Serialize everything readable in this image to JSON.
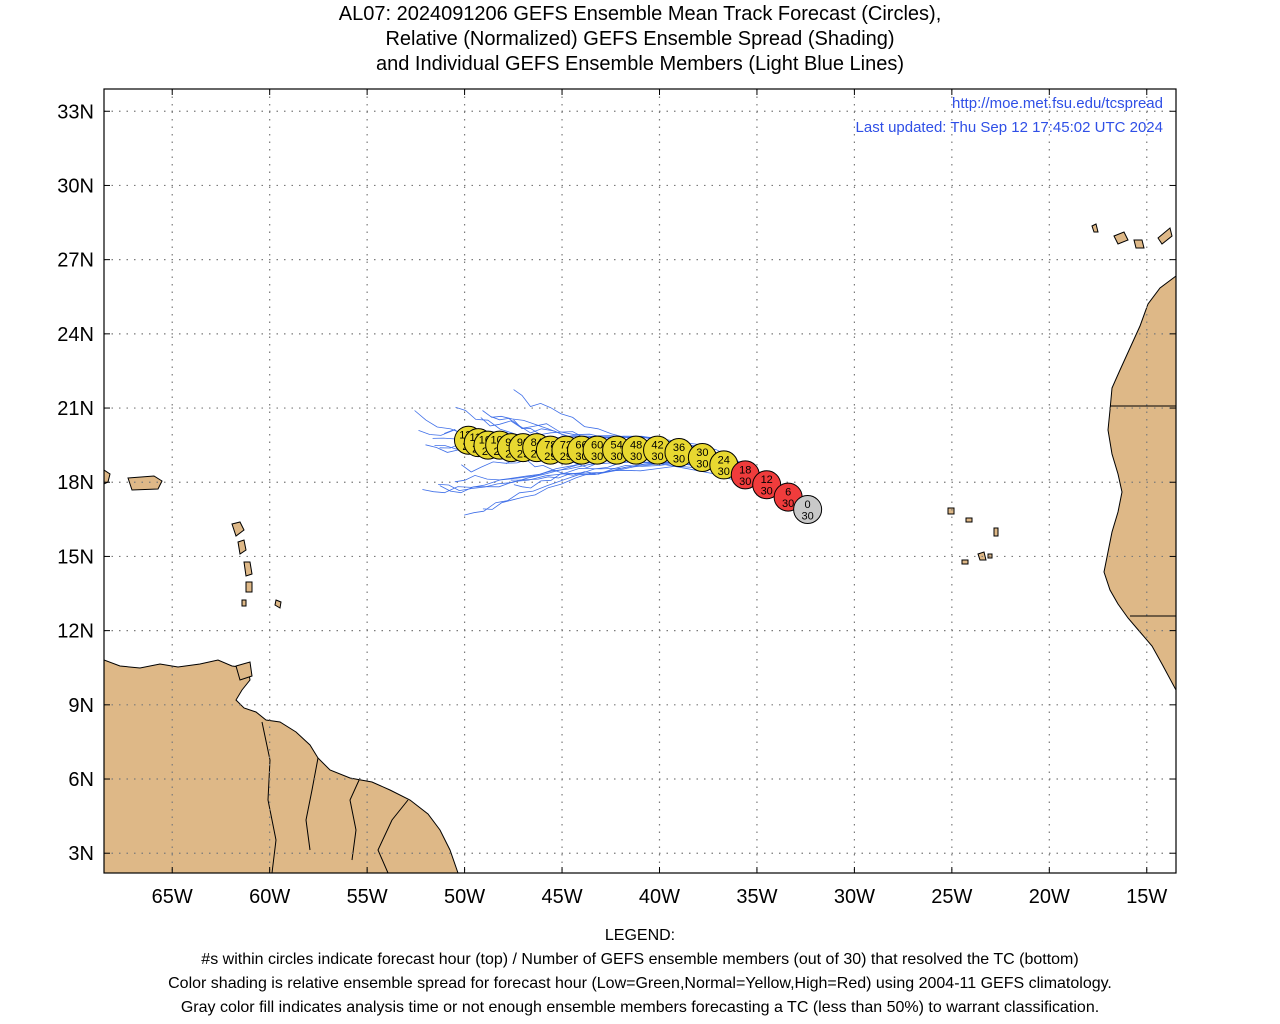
{
  "title": {
    "line1": "AL07: 2024091206 GEFS Ensemble Mean Track Forecast (Circles),",
    "line2": "Relative (Normalized) GEFS Ensemble Spread (Shading)",
    "line3": "and Individual GEFS Ensemble Members (Light Blue Lines)"
  },
  "credits": {
    "url": "http://moe.met.fsu.edu/tcspread",
    "updated": "Last updated: Thu Sep 12 17:45:02 UTC 2024"
  },
  "legend": {
    "heading": "LEGEND:",
    "line1": "#s within circles indicate forecast hour (top) / Number of GEFS ensemble members (out of 30) that resolved the TC (bottom)",
    "line2": "Color shading is relative ensemble spread for forecast hour (Low=Green,Normal=Yellow,High=Red) using 2004-11 GEFS climatology.",
    "line3": "Gray color fill indicates analysis time or not enough ensemble members forecasting a TC (less than 50%) to warrant classification."
  },
  "map": {
    "lon_range": [
      -68.5,
      -13.5
    ],
    "lat_range": [
      2.2,
      33.9
    ],
    "lon_ticks": [
      -65,
      -60,
      -55,
      -50,
      -45,
      -40,
      -35,
      -30,
      -25,
      -20,
      -15
    ],
    "lon_labels": [
      "65W",
      "60W",
      "55W",
      "50W",
      "45W",
      "40W",
      "35W",
      "30W",
      "25W",
      "20W",
      "15W"
    ],
    "lat_ticks": [
      3,
      6,
      9,
      12,
      15,
      18,
      21,
      24,
      27,
      30,
      33
    ],
    "lat_labels": [
      "3N",
      "6N",
      "9N",
      "12N",
      "15N",
      "18N",
      "21N",
      "24N",
      "27N",
      "30N",
      "33N"
    ],
    "colors": {
      "land": "#deb887",
      "members": "#3f6fe8",
      "low": "#33cc33",
      "normal": "#e8d830",
      "high": "#f03c3c",
      "analysis": "#c8c8c8",
      "credits": "#2f4fe6"
    }
  },
  "track": [
    {
      "hour": "0",
      "members": "30",
      "lon": -32.4,
      "lat": 16.9,
      "spread": "analysis"
    },
    {
      "hour": "6",
      "members": "30",
      "lon": -33.4,
      "lat": 17.4,
      "spread": "high"
    },
    {
      "hour": "12",
      "members": "30",
      "lon": -34.5,
      "lat": 17.9,
      "spread": "high"
    },
    {
      "hour": "18",
      "members": "30",
      "lon": -35.6,
      "lat": 18.3,
      "spread": "high"
    },
    {
      "hour": "24",
      "members": "30",
      "lon": -36.7,
      "lat": 18.7,
      "spread": "normal"
    },
    {
      "hour": "30",
      "members": "30",
      "lon": -37.8,
      "lat": 19.0,
      "spread": "normal"
    },
    {
      "hour": "36",
      "members": "30",
      "lon": -39.0,
      "lat": 19.2,
      "spread": "normal"
    },
    {
      "hour": "42",
      "members": "30",
      "lon": -40.1,
      "lat": 19.3,
      "spread": "normal"
    },
    {
      "hour": "48",
      "members": "30",
      "lon": -41.2,
      "lat": 19.3,
      "spread": "normal"
    },
    {
      "hour": "54",
      "members": "30",
      "lon": -42.2,
      "lat": 19.3,
      "spread": "normal"
    },
    {
      "hour": "60",
      "members": "30",
      "lon": -43.2,
      "lat": 19.3,
      "spread": "normal"
    },
    {
      "hour": "66",
      "members": "30",
      "lon": -44.0,
      "lat": 19.3,
      "spread": "normal"
    },
    {
      "hour": "72",
      "members": "29",
      "lon": -44.8,
      "lat": 19.3,
      "spread": "normal"
    },
    {
      "hour": "78",
      "members": "29",
      "lon": -45.6,
      "lat": 19.3,
      "spread": "normal"
    },
    {
      "hour": "84",
      "members": "29",
      "lon": -46.3,
      "lat": 19.4,
      "spread": "normal"
    },
    {
      "hour": "90",
      "members": "29",
      "lon": -47.0,
      "lat": 19.4,
      "spread": "normal"
    },
    {
      "hour": "96",
      "members": "29",
      "lon": -47.6,
      "lat": 19.4,
      "spread": "normal"
    },
    {
      "hour": "102",
      "members": "29",
      "lon": -48.2,
      "lat": 19.5,
      "spread": "normal"
    },
    {
      "hour": "108",
      "members": "29",
      "lon": -48.8,
      "lat": 19.5,
      "spread": "normal"
    },
    {
      "hour": "114",
      "members": "29",
      "lon": -49.3,
      "lat": 19.6,
      "spread": "normal"
    },
    {
      "hour": "120",
      "members": "29",
      "lon": -49.8,
      "lat": 19.7,
      "spread": "normal"
    }
  ]
}
